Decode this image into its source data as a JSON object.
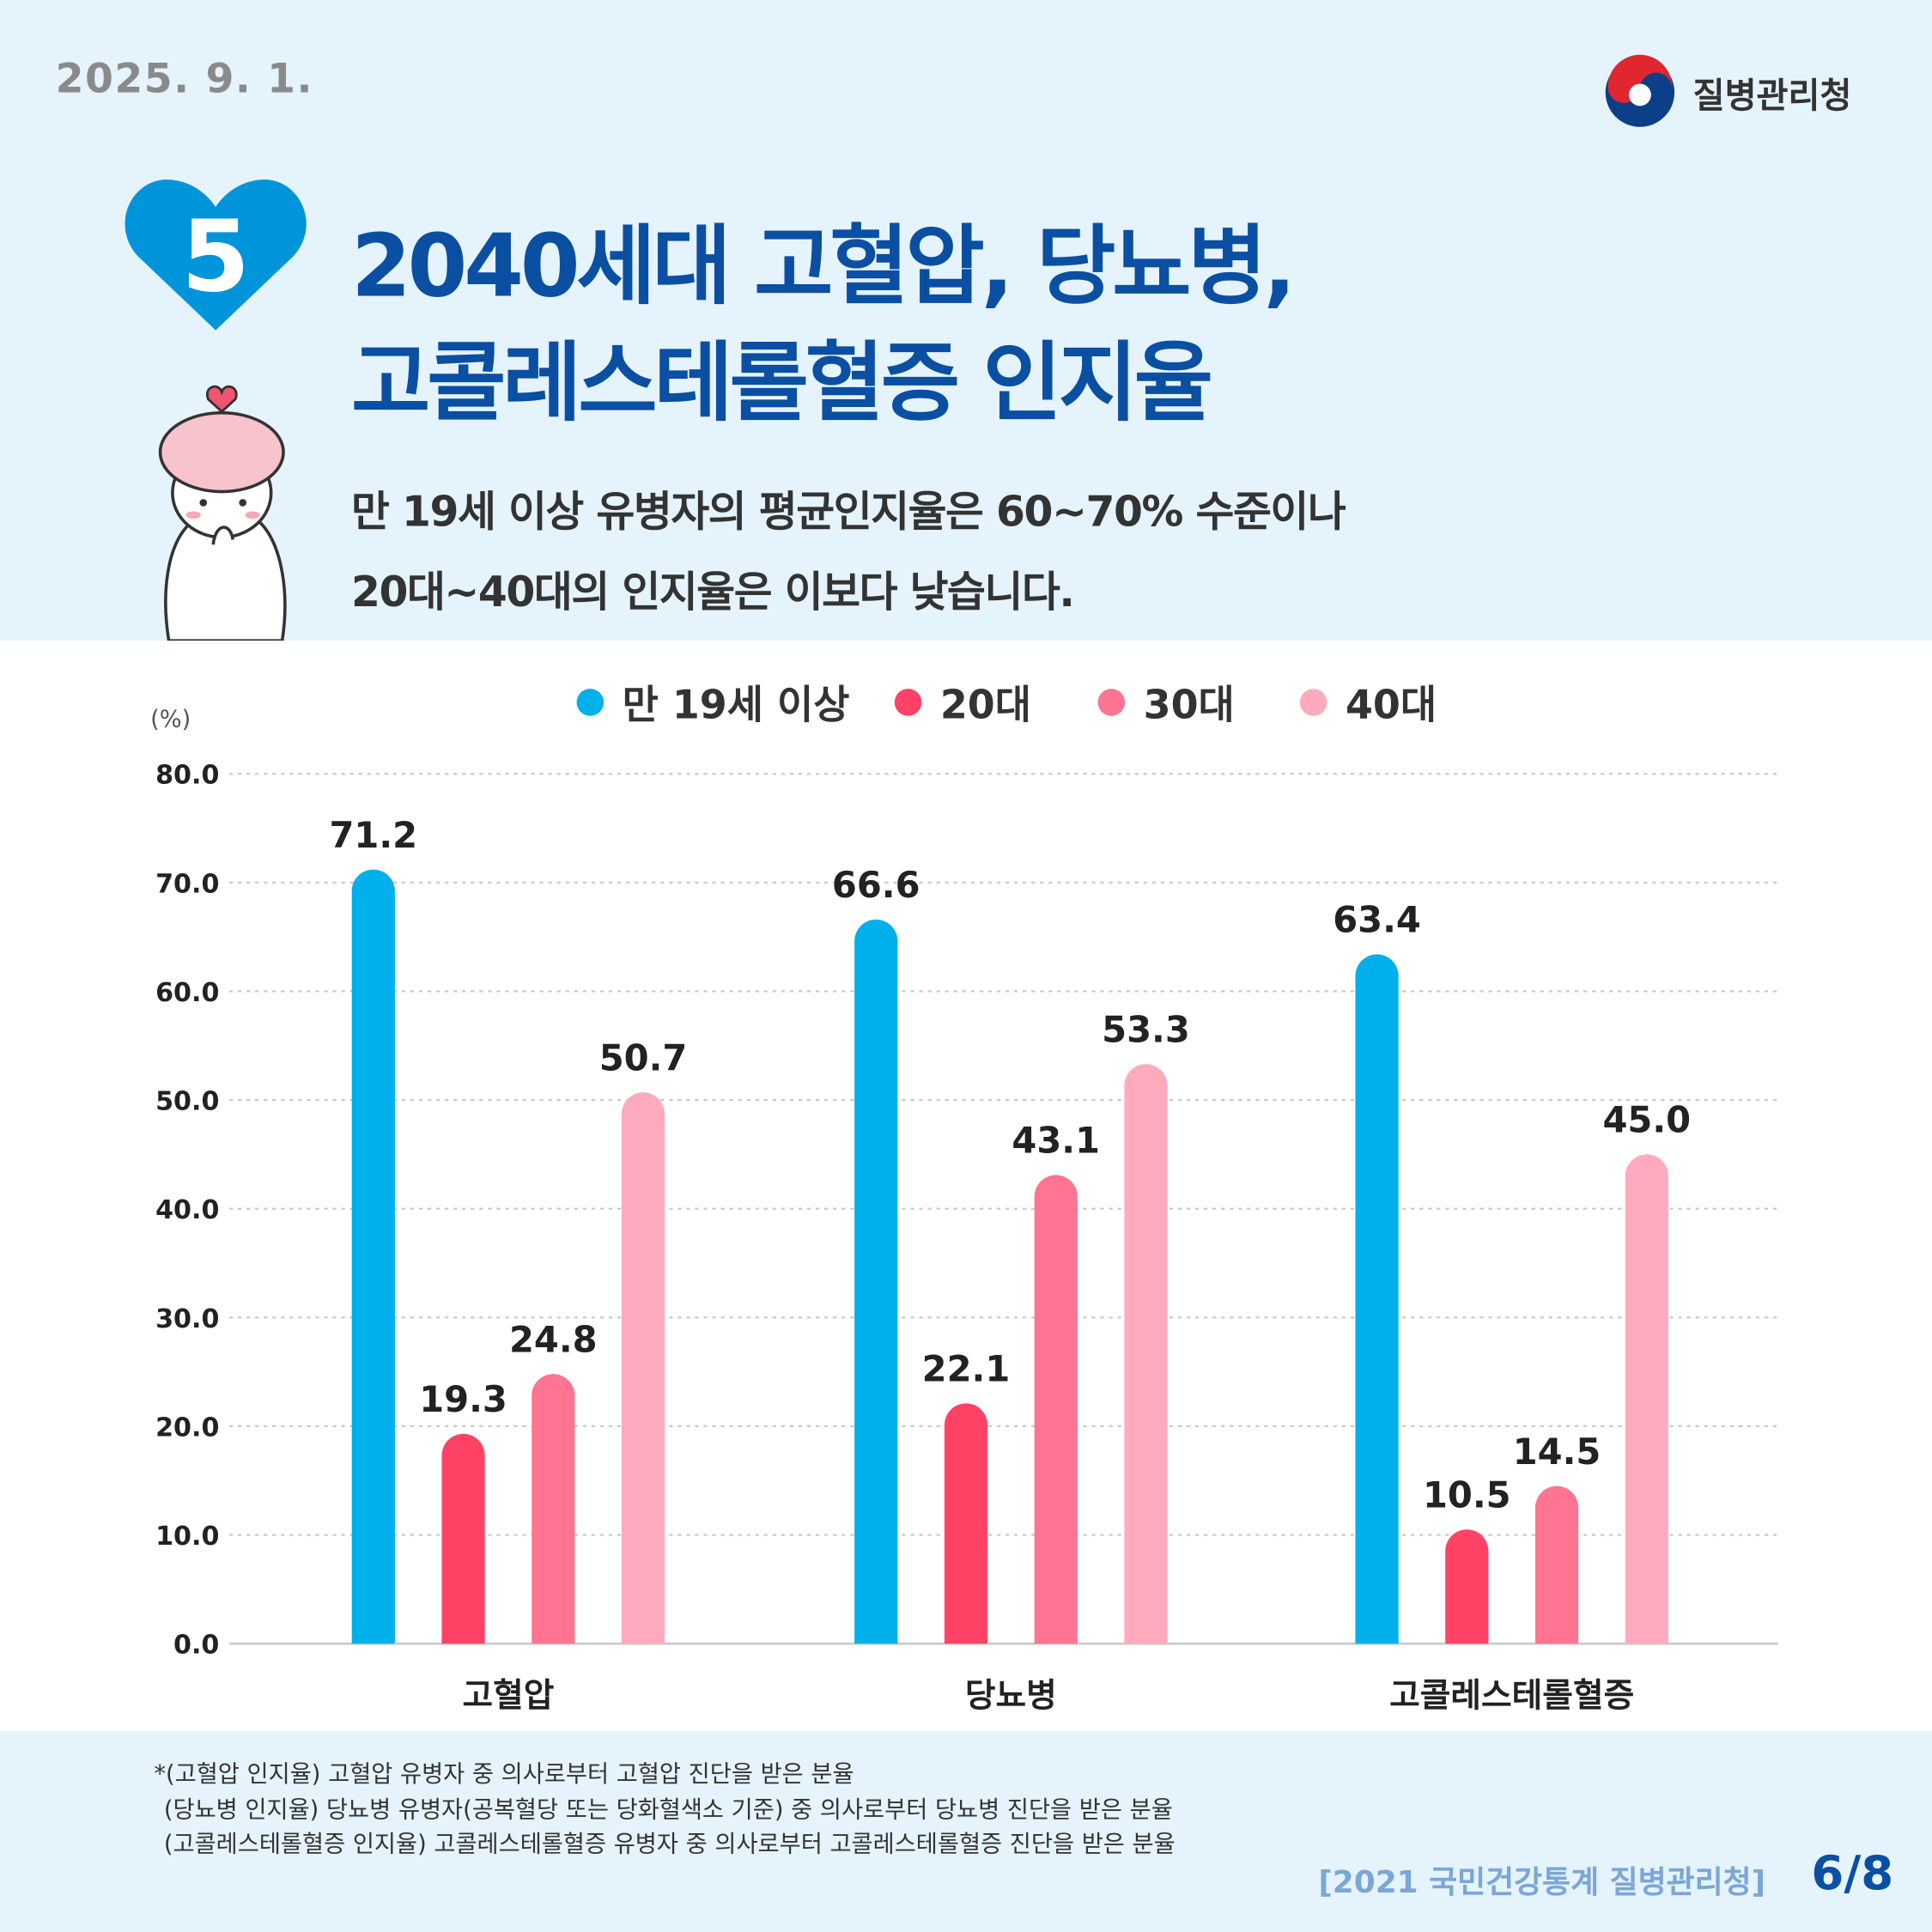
{
  "date": "2025. 9. 1.",
  "org": "질병관리청",
  "badge_number": "5",
  "title": [
    "2040세대 고혈압, 당뇨병,",
    "고콜레스테롤혈증 인지율"
  ],
  "subtitle": [
    "만 19세 이상 유병자의 평균인지율은 60~70% 수준이나",
    "20대~40대의 인지율은 이보다 낮습니다."
  ],
  "chart_data": {
    "type": "bar",
    "ylabel": "(%)",
    "ylim": [
      0,
      80
    ],
    "yticks": [
      "0.0",
      "10.0",
      "20.0",
      "30.0",
      "40.0",
      "50.0",
      "60.0",
      "70.0",
      "80.0"
    ],
    "grid": true,
    "legend_position": "top",
    "categories": [
      "고혈압",
      "당뇨병",
      "고콜레스테롤혈증"
    ],
    "series": [
      {
        "name": "만 19세 이상",
        "color": "#00b0ea",
        "values": [
          71.2,
          66.6,
          63.4
        ]
      },
      {
        "name": "20대",
        "color": "#ff4265",
        "values": [
          19.3,
          22.1,
          10.5
        ]
      },
      {
        "name": "30대",
        "color": "#ff7591",
        "values": [
          24.8,
          43.1,
          14.5
        ]
      },
      {
        "name": "40대",
        "color": "#ffaabe",
        "values": [
          50.7,
          53.3,
          45.0
        ]
      }
    ],
    "data_labels": [
      [
        "71.2",
        "66.6",
        "63.4"
      ],
      [
        "19.3",
        "22.1",
        "10.5"
      ],
      [
        "24.8",
        "43.1",
        "14.5"
      ],
      [
        "50.7",
        "53.3",
        "45.0"
      ]
    ]
  },
  "footnotes": [
    "*(고혈압 인지율) 고혈압 유병자 중 의사로부터 고혈압 진단을 받은 분율",
    "(당뇨병 인지율) 당뇨병 유병자(공복혈당 또는 당화혈색소 기준) 중 의사로부터 당뇨병 진단을 받은 분율",
    "(고콜레스테롤혈증 인지율) 고콜레스테롤혈증 유병자 중 의사로부터 고콜레스테롤혈증 진단을 받은 분율"
  ],
  "source": "[2021 국민건강통계 질병관리청]",
  "page": "6/8",
  "colors": {
    "title": "#0a4fa2",
    "heart": "#0095da",
    "background": "#e5f3fc"
  }
}
